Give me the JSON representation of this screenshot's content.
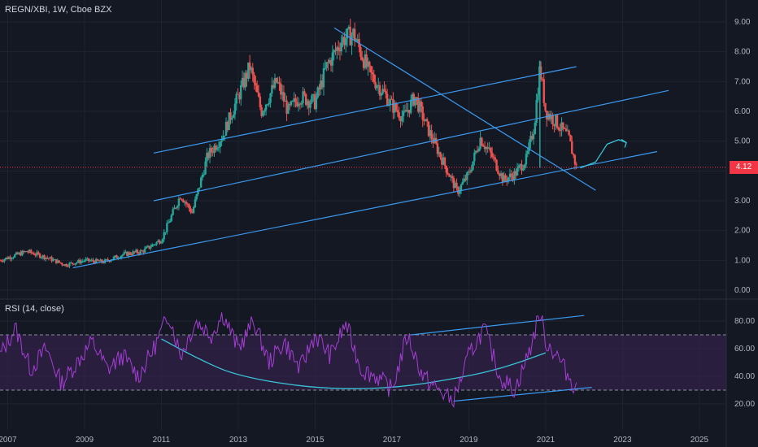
{
  "header": {
    "symbol": "REGN/XBI, 1W, Cboe BZX"
  },
  "rsi_header": {
    "label": "RSI (14, close)"
  },
  "last_price": "4.12",
  "colors": {
    "background": "#141823",
    "grid": "#1f2331",
    "up": "#26a69a",
    "down": "#ef5350",
    "trendline": "#3b9af0",
    "rsi_line": "#a43ed4",
    "rsi_band": "#3b2456",
    "price_tag": "#f23645"
  },
  "chart_data": [
    {
      "type": "candlestick",
      "title": "REGN/XBI, 1W, Cboe BZX",
      "y_ticks": [
        "9.00",
        "8.00",
        "7.00",
        "6.00",
        "5.00",
        "4.00",
        "3.00",
        "2.00",
        "1.00",
        "0.00"
      ],
      "ylim": [
        0,
        9.5
      ],
      "xlim": [
        2006.8,
        2025.7
      ],
      "path_keypoints": [
        [
          2006.8,
          1.0
        ],
        [
          2007.5,
          1.3
        ],
        [
          2008.0,
          1.1
        ],
        [
          2008.5,
          0.85
        ],
        [
          2009.0,
          1.0
        ],
        [
          2009.5,
          0.95
        ],
        [
          2010.0,
          1.2
        ],
        [
          2010.5,
          1.3
        ],
        [
          2011.0,
          1.7
        ],
        [
          2011.5,
          3.2
        ],
        [
          2011.8,
          2.6
        ],
        [
          2012.2,
          4.5
        ],
        [
          2012.6,
          5.2
        ],
        [
          2013.0,
          6.5
        ],
        [
          2013.3,
          7.5
        ],
        [
          2013.6,
          6.0
        ],
        [
          2014.0,
          7.0
        ],
        [
          2014.3,
          6.0
        ],
        [
          2014.6,
          6.5
        ],
        [
          2015.0,
          6.3
        ],
        [
          2015.3,
          7.5
        ],
        [
          2015.7,
          8.4
        ],
        [
          2016.0,
          8.6
        ],
        [
          2016.4,
          7.3
        ],
        [
          2016.8,
          6.6
        ],
        [
          2017.0,
          6.2
        ],
        [
          2017.3,
          5.8
        ],
        [
          2017.6,
          6.5
        ],
        [
          2017.9,
          5.5
        ],
        [
          2018.3,
          4.4
        ],
        [
          2018.7,
          3.3
        ],
        [
          2019.0,
          3.9
        ],
        [
          2019.3,
          5.1
        ],
        [
          2019.6,
          4.5
        ],
        [
          2019.9,
          3.7
        ],
        [
          2020.2,
          3.9
        ],
        [
          2020.5,
          4.4
        ],
        [
          2020.7,
          5.5
        ],
        [
          2020.85,
          7.5
        ],
        [
          2021.0,
          6.0
        ],
        [
          2021.3,
          5.6
        ],
        [
          2021.6,
          5.1
        ],
        [
          2021.8,
          4.12
        ]
      ],
      "trendlines": [
        {
          "name": "upper-channel",
          "from": [
            2010.8,
            4.6
          ],
          "to": [
            2021.8,
            7.5
          ]
        },
        {
          "name": "middle-channel",
          "from": [
            2010.8,
            3.0
          ],
          "to": [
            2024.2,
            6.7
          ]
        },
        {
          "name": "lower-channel",
          "from": [
            2008.7,
            0.75
          ],
          "to": [
            2023.9,
            4.65
          ]
        },
        {
          "name": "descending-line",
          "from": [
            2015.5,
            8.8
          ],
          "to": [
            2022.3,
            3.35
          ]
        }
      ],
      "projection": [
        [
          2021.9,
          4.1
        ],
        [
          2022.3,
          4.3
        ],
        [
          2022.6,
          4.9
        ],
        [
          2022.9,
          5.05
        ],
        [
          2023.1,
          4.95
        ]
      ]
    },
    {
      "type": "line",
      "title": "RSI (14, close)",
      "y_ticks": [
        "80.00",
        "60.00",
        "40.00",
        "20.00"
      ],
      "ylim": [
        15,
        95
      ],
      "bands": [
        30,
        70
      ],
      "path_keypoints": [
        [
          2006.8,
          55
        ],
        [
          2007.2,
          75
        ],
        [
          2007.6,
          45
        ],
        [
          2008.0,
          60
        ],
        [
          2008.4,
          35
        ],
        [
          2008.8,
          50
        ],
        [
          2009.2,
          65
        ],
        [
          2009.6,
          45
        ],
        [
          2010.0,
          55
        ],
        [
          2010.4,
          40
        ],
        [
          2010.8,
          60
        ],
        [
          2011.2,
          85
        ],
        [
          2011.5,
          55
        ],
        [
          2011.9,
          80
        ],
        [
          2012.3,
          70
        ],
        [
          2012.6,
          85
        ],
        [
          2013.0,
          60
        ],
        [
          2013.4,
          80
        ],
        [
          2013.8,
          50
        ],
        [
          2014.2,
          65
        ],
        [
          2014.6,
          45
        ],
        [
          2015.0,
          70
        ],
        [
          2015.4,
          55
        ],
        [
          2015.8,
          78
        ],
        [
          2016.2,
          45
        ],
        [
          2016.6,
          40
        ],
        [
          2017.0,
          30
        ],
        [
          2017.4,
          70
        ],
        [
          2017.8,
          40
        ],
        [
          2018.2,
          30
        ],
        [
          2018.6,
          22
        ],
        [
          2019.0,
          55
        ],
        [
          2019.4,
          75
        ],
        [
          2019.8,
          40
        ],
        [
          2020.2,
          30
        ],
        [
          2020.6,
          60
        ],
        [
          2020.85,
          87
        ],
        [
          2021.0,
          65
        ],
        [
          2021.3,
          55
        ],
        [
          2021.6,
          40
        ],
        [
          2021.8,
          31
        ]
      ],
      "trendlines": [
        {
          "name": "rsi-upper",
          "from": [
            2017.5,
            70
          ],
          "to": [
            2022.0,
            84
          ]
        },
        {
          "name": "rsi-lower",
          "from": [
            2018.6,
            22
          ],
          "to": [
            2022.2,
            32
          ]
        }
      ],
      "curve": [
        [
          2011.0,
          67
        ],
        [
          2012.0,
          52
        ],
        [
          2013.0,
          40
        ],
        [
          2015.0,
          31
        ],
        [
          2017.0,
          31
        ],
        [
          2019.0,
          40
        ],
        [
          2020.0,
          47
        ],
        [
          2021.0,
          57
        ]
      ]
    }
  ],
  "x_ticks": [
    "2007",
    "2009",
    "2011",
    "2013",
    "2015",
    "2017",
    "2019",
    "2021",
    "2023",
    "2025"
  ],
  "x_tick_years": [
    2007,
    2009,
    2011,
    2013,
    2015,
    2017,
    2019,
    2021,
    2023,
    2025
  ]
}
